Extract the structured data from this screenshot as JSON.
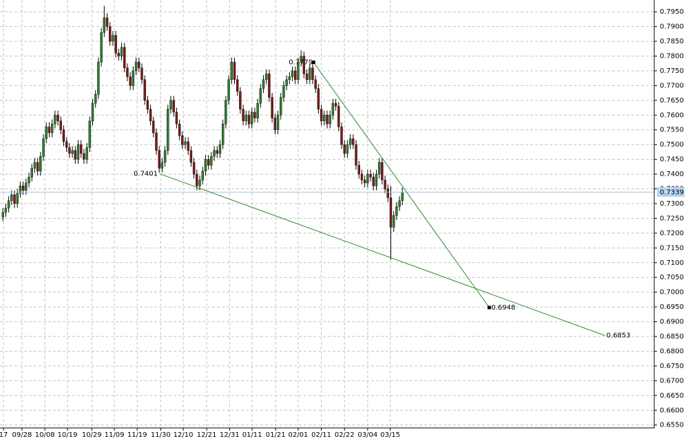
{
  "chart_data": {
    "type": "candlestick",
    "up_color": "#2f7d2f",
    "down_color": "#7a1a1a",
    "wick_color": "#000000",
    "grid": true,
    "current_price": 0.7339,
    "current_price_color": "#9cc3e6",
    "xlim": [
      0,
      226
    ],
    "ylim": [
      0.654,
      0.799
    ],
    "xticks": [
      {
        "value": 1.2,
        "label": "17"
      },
      {
        "value": 7.6,
        "label": "09/28"
      },
      {
        "value": 15.5,
        "label": "10/08"
      },
      {
        "value": 23.3,
        "label": "10/19"
      },
      {
        "value": 31.7,
        "label": "10/29"
      },
      {
        "value": 39.5,
        "label": "11/09"
      },
      {
        "value": 47.4,
        "label": "11/19"
      },
      {
        "value": 55.5,
        "label": "11/30"
      },
      {
        "value": 63.3,
        "label": "12/10"
      },
      {
        "value": 71.4,
        "label": "12/21"
      },
      {
        "value": 79.3,
        "label": "12/31"
      },
      {
        "value": 87.1,
        "label": "01/11"
      },
      {
        "value": 95.2,
        "label": "01/21"
      },
      {
        "value": 103,
        "label": "02/01"
      },
      {
        "value": 111,
        "label": "02/11"
      },
      {
        "value": 119,
        "label": "02/22"
      },
      {
        "value": 127,
        "label": "03/04"
      },
      {
        "value": 134.8,
        "label": "03/15"
      }
    ],
    "yticks": [
      {
        "value": 0.655,
        "label": "0.6550"
      },
      {
        "value": 0.66,
        "label": "0.6600"
      },
      {
        "value": 0.665,
        "label": "0.6650"
      },
      {
        "value": 0.67,
        "label": "0.6700"
      },
      {
        "value": 0.675,
        "label": "0.6750"
      },
      {
        "value": 0.68,
        "label": "0.6800"
      },
      {
        "value": 0.685,
        "label": "0.6850"
      },
      {
        "value": 0.69,
        "label": "0.6900"
      },
      {
        "value": 0.695,
        "label": "0.6950"
      },
      {
        "value": 0.7,
        "label": "0.7000"
      },
      {
        "value": 0.705,
        "label": "0.7050"
      },
      {
        "value": 0.71,
        "label": "0.7100"
      },
      {
        "value": 0.715,
        "label": "0.7150"
      },
      {
        "value": 0.72,
        "label": "0.7200"
      },
      {
        "value": 0.725,
        "label": "0.7250"
      },
      {
        "value": 0.73,
        "label": "0.7300"
      },
      {
        "value": 0.735,
        "label": "0.7350"
      },
      {
        "value": 0.74,
        "label": "0.7400"
      },
      {
        "value": 0.745,
        "label": "0.7450"
      },
      {
        "value": 0.75,
        "label": "0.7500"
      },
      {
        "value": 0.755,
        "label": "0.7550"
      },
      {
        "value": 0.76,
        "label": "0.7600"
      },
      {
        "value": 0.765,
        "label": "0.7650"
      },
      {
        "value": 0.77,
        "label": "0.7700"
      },
      {
        "value": 0.775,
        "label": "0.7750"
      },
      {
        "value": 0.78,
        "label": "0.7800"
      },
      {
        "value": 0.785,
        "label": "0.7850"
      },
      {
        "value": 0.79,
        "label": "0.7900"
      },
      {
        "value": 0.795,
        "label": "0.7950"
      }
    ],
    "trendlines": [
      {
        "x": [
          55.2,
          209
        ],
        "y": [
          0.7401,
          0.6853
        ],
        "color": "#2a8a2a"
      },
      {
        "x": [
          108.3,
          169
        ],
        "y": [
          0.7779,
          0.6948
        ],
        "color": "#2a8a2a"
      }
    ],
    "x": [
      1,
      2,
      3,
      4,
      5,
      6,
      7,
      8,
      9,
      10,
      11,
      12,
      13,
      14,
      15,
      16,
      17,
      18,
      19,
      20,
      21,
      22,
      23,
      24,
      25,
      26,
      27,
      28,
      29,
      30,
      31,
      32,
      33,
      34,
      35,
      36,
      37,
      38,
      39,
      40,
      41,
      42,
      43,
      44,
      45,
      46,
      47,
      48,
      49,
      50,
      51,
      52,
      53,
      54,
      55,
      56,
      57,
      58,
      59,
      60,
      61,
      62,
      63,
      64,
      65,
      66,
      67,
      68,
      69,
      70,
      71,
      72,
      73,
      74,
      75,
      76,
      77,
      78,
      79,
      80,
      81,
      82,
      83,
      84,
      85,
      86,
      87,
      88,
      89,
      90,
      91,
      92,
      93,
      94,
      95,
      96,
      97,
      98,
      99,
      100,
      101,
      102,
      103,
      104,
      105,
      106,
      107,
      108,
      109,
      110,
      111,
      112,
      113,
      114,
      115,
      116,
      117,
      118,
      119,
      120,
      121,
      122,
      123,
      124,
      125,
      126,
      127,
      128,
      129,
      130,
      131,
      132,
      133,
      134,
      135,
      136,
      137,
      138,
      139
    ],
    "open": [
      0.7255,
      0.727,
      0.7285,
      0.731,
      0.733,
      0.73,
      0.7335,
      0.736,
      0.7345,
      0.737,
      0.739,
      0.742,
      0.744,
      0.741,
      0.746,
      0.752,
      0.756,
      0.754,
      0.757,
      0.76,
      0.758,
      0.755,
      0.751,
      0.749,
      0.747,
      0.748,
      0.745,
      0.75,
      0.747,
      0.745,
      0.749,
      0.758,
      0.764,
      0.767,
      0.778,
      0.788,
      0.793,
      0.79,
      0.785,
      0.787,
      0.781,
      0.78,
      0.783,
      0.776,
      0.773,
      0.77,
      0.775,
      0.778,
      0.776,
      0.772,
      0.765,
      0.762,
      0.758,
      0.754,
      0.748,
      0.742,
      0.744,
      0.748,
      0.762,
      0.765,
      0.761,
      0.757,
      0.753,
      0.75,
      0.751,
      0.748,
      0.744,
      0.74,
      0.736,
      0.738,
      0.741,
      0.745,
      0.743,
      0.746,
      0.748,
      0.747,
      0.75,
      0.757,
      0.765,
      0.772,
      0.778,
      0.772,
      0.768,
      0.762,
      0.758,
      0.76,
      0.757,
      0.761,
      0.759,
      0.764,
      0.769,
      0.772,
      0.774,
      0.766,
      0.759,
      0.755,
      0.76,
      0.766,
      0.77,
      0.772,
      0.773,
      0.775,
      0.772,
      0.778,
      0.78,
      0.774,
      0.772,
      0.776,
      0.772,
      0.769,
      0.762,
      0.758,
      0.76,
      0.757,
      0.76,
      0.764,
      0.763,
      0.756,
      0.75,
      0.747,
      0.75,
      0.752,
      0.75,
      0.743,
      0.74,
      0.738,
      0.737,
      0.74,
      0.739,
      0.736,
      0.74,
      0.744,
      0.738,
      0.735,
      0.732,
      0.722,
      0.726,
      0.729,
      0.731
    ],
    "high": [
      0.7285,
      0.73,
      0.7325,
      0.7345,
      0.7345,
      0.735,
      0.7375,
      0.7375,
      0.7385,
      0.7405,
      0.7435,
      0.7455,
      0.7455,
      0.7475,
      0.7535,
      0.7575,
      0.7575,
      0.7585,
      0.7615,
      0.7615,
      0.7595,
      0.7565,
      0.7525,
      0.7505,
      0.7495,
      0.7495,
      0.7515,
      0.7515,
      0.7485,
      0.7505,
      0.7595,
      0.7655,
      0.7685,
      0.7795,
      0.7895,
      0.797,
      0.7945,
      0.7915,
      0.7885,
      0.7885,
      0.7825,
      0.7845,
      0.7845,
      0.7775,
      0.7745,
      0.7765,
      0.7795,
      0.7795,
      0.7775,
      0.7735,
      0.7665,
      0.7635,
      0.7595,
      0.7555,
      0.7495,
      0.7455,
      0.7495,
      0.7635,
      0.7665,
      0.7665,
      0.7625,
      0.7585,
      0.7545,
      0.7525,
      0.7525,
      0.7495,
      0.7455,
      0.7415,
      0.7395,
      0.7425,
      0.7465,
      0.7465,
      0.7475,
      0.7495,
      0.7495,
      0.7515,
      0.7585,
      0.7665,
      0.7735,
      0.7795,
      0.7795,
      0.7735,
      0.7695,
      0.7635,
      0.7615,
      0.7615,
      0.7625,
      0.7625,
      0.7655,
      0.7705,
      0.7735,
      0.7755,
      0.7755,
      0.7675,
      0.7605,
      0.7615,
      0.7675,
      0.7715,
      0.7735,
      0.7745,
      0.7765,
      0.7765,
      0.7795,
      0.782,
      0.7815,
      0.7755,
      0.7775,
      0.7775,
      0.7735,
      0.7705,
      0.7635,
      0.7615,
      0.7615,
      0.7615,
      0.7655,
      0.7655,
      0.7645,
      0.7575,
      0.7515,
      0.7515,
      0.7535,
      0.7535,
      0.7515,
      0.7445,
      0.7415,
      0.7395,
      0.7415,
      0.7415,
      0.7405,
      0.7415,
      0.7455,
      0.7455,
      0.7395,
      0.7365,
      0.736,
      0.7275,
      0.7305,
      0.7325,
      0.7354
    ],
    "low": [
      0.724,
      0.7255,
      0.727,
      0.7295,
      0.7285,
      0.7285,
      0.732,
      0.733,
      0.733,
      0.7355,
      0.7375,
      0.7405,
      0.7395,
      0.7395,
      0.7445,
      0.7505,
      0.7525,
      0.7525,
      0.7555,
      0.7565,
      0.7535,
      0.7495,
      0.7475,
      0.7455,
      0.7455,
      0.7435,
      0.7435,
      0.7455,
      0.7435,
      0.7435,
      0.7475,
      0.7565,
      0.7625,
      0.7655,
      0.7765,
      0.7865,
      0.7885,
      0.7835,
      0.7835,
      0.7795,
      0.7785,
      0.7785,
      0.7745,
      0.7715,
      0.7685,
      0.7685,
      0.7735,
      0.7745,
      0.7705,
      0.7635,
      0.7605,
      0.7565,
      0.7525,
      0.7465,
      0.7405,
      0.7405,
      0.7425,
      0.7465,
      0.7605,
      0.7595,
      0.7555,
      0.7515,
      0.7485,
      0.7485,
      0.7465,
      0.7425,
      0.7385,
      0.7345,
      0.7345,
      0.7365,
      0.7395,
      0.7415,
      0.7415,
      0.7445,
      0.7455,
      0.7455,
      0.7485,
      0.7555,
      0.7635,
      0.7705,
      0.7705,
      0.7665,
      0.7605,
      0.7565,
      0.7565,
      0.7555,
      0.7555,
      0.7575,
      0.7575,
      0.7625,
      0.7675,
      0.7705,
      0.7645,
      0.7575,
      0.7535,
      0.7535,
      0.7585,
      0.7645,
      0.7685,
      0.7705,
      0.7715,
      0.7705,
      0.7705,
      0.7765,
      0.7725,
      0.7705,
      0.7705,
      0.7705,
      0.7675,
      0.7605,
      0.7565,
      0.7565,
      0.7555,
      0.7555,
      0.7585,
      0.7615,
      0.7545,
      0.7485,
      0.7455,
      0.7455,
      0.7485,
      0.7485,
      0.7415,
      0.7385,
      0.7365,
      0.7355,
      0.7355,
      0.7375,
      0.7345,
      0.7345,
      0.7385,
      0.7365,
      0.7335,
      0.7305,
      0.711,
      0.7205,
      0.7245,
      0.7275,
      0.7295
    ],
    "close": [
      0.727,
      0.7285,
      0.731,
      0.733,
      0.73,
      0.7335,
      0.736,
      0.7345,
      0.737,
      0.739,
      0.742,
      0.744,
      0.741,
      0.746,
      0.752,
      0.756,
      0.754,
      0.757,
      0.76,
      0.758,
      0.755,
      0.751,
      0.749,
      0.747,
      0.748,
      0.745,
      0.75,
      0.747,
      0.745,
      0.749,
      0.758,
      0.764,
      0.767,
      0.778,
      0.788,
      0.793,
      0.79,
      0.785,
      0.787,
      0.781,
      0.78,
      0.783,
      0.776,
      0.773,
      0.77,
      0.775,
      0.778,
      0.776,
      0.772,
      0.765,
      0.762,
      0.758,
      0.754,
      0.748,
      0.742,
      0.744,
      0.748,
      0.762,
      0.765,
      0.761,
      0.757,
      0.753,
      0.75,
      0.751,
      0.748,
      0.744,
      0.74,
      0.736,
      0.738,
      0.741,
      0.745,
      0.743,
      0.746,
      0.748,
      0.747,
      0.75,
      0.757,
      0.765,
      0.772,
      0.778,
      0.772,
      0.768,
      0.762,
      0.758,
      0.76,
      0.757,
      0.761,
      0.759,
      0.764,
      0.769,
      0.772,
      0.774,
      0.766,
      0.759,
      0.755,
      0.76,
      0.766,
      0.77,
      0.772,
      0.773,
      0.775,
      0.772,
      0.778,
      0.78,
      0.774,
      0.772,
      0.776,
      0.772,
      0.769,
      0.762,
      0.758,
      0.76,
      0.757,
      0.76,
      0.764,
      0.763,
      0.756,
      0.75,
      0.747,
      0.75,
      0.752,
      0.75,
      0.743,
      0.74,
      0.738,
      0.737,
      0.74,
      0.739,
      0.736,
      0.74,
      0.744,
      0.738,
      0.735,
      0.732,
      0.722,
      0.726,
      0.729,
      0.731,
      0.7339
    ]
  }
}
